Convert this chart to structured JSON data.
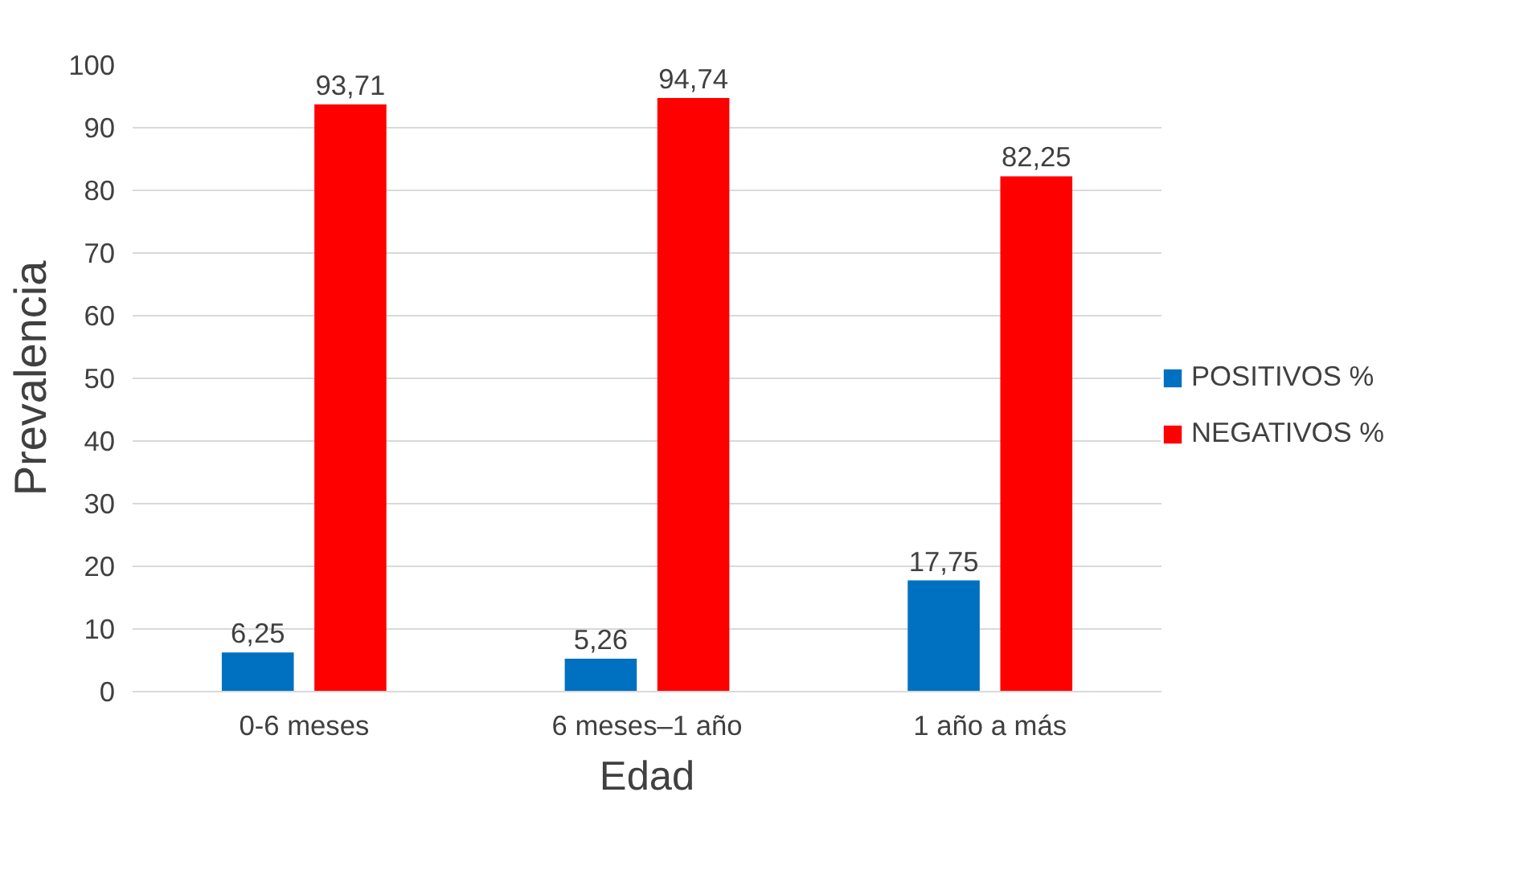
{
  "chart_data": {
    "type": "bar",
    "xlabel": "Edad",
    "ylabel": "Prevalencia",
    "categories": [
      "0-6 meses",
      "6 meses–1 año",
      "1 año a más"
    ],
    "series": [
      {
        "name": "POSITIVOS %",
        "color": "#0070c0",
        "values": [
          6.25,
          5.26,
          17.75
        ],
        "value_labels": [
          "6,25",
          "5,26",
          "17,75"
        ]
      },
      {
        "name": "NEGATIVOS %",
        "color": "#ff0000",
        "values": [
          93.71,
          94.74,
          82.25
        ],
        "value_labels": [
          "93,71",
          "94,74",
          "82,25"
        ]
      }
    ],
    "ylim": [
      0,
      100
    ],
    "yticks": [
      0,
      10,
      20,
      30,
      40,
      50,
      60,
      70,
      80,
      90,
      100
    ],
    "grid": "y",
    "legend": "right"
  }
}
